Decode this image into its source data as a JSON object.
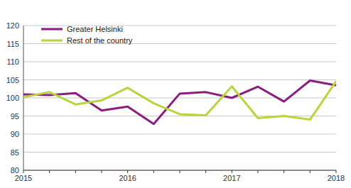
{
  "chart_data": {
    "type": "line",
    "categories": [
      "2015",
      null,
      null,
      null,
      "2016",
      null,
      null,
      null,
      "2017",
      null,
      null,
      null,
      "2018"
    ],
    "series": [
      {
        "name": "Greater Helsinki",
        "color": "#8b1d82",
        "values": [
          101.0,
          100.8,
          101.3,
          96.5,
          97.6,
          92.8,
          101.2,
          101.6,
          100.0,
          103.1,
          99.0,
          104.8,
          103.5
        ]
      },
      {
        "name": "Rest of the country",
        "color": "#b7d53d",
        "values": [
          100.2,
          101.6,
          98.2,
          99.3,
          102.8,
          98.5,
          95.5,
          95.2,
          103.2,
          94.4,
          95.0,
          94.0,
          104.6
        ]
      }
    ],
    "ylim": [
      80,
      120
    ],
    "yticks": [
      80,
      85,
      90,
      95,
      100,
      105,
      110,
      115,
      120
    ],
    "grid": true,
    "legend": "upper left"
  }
}
